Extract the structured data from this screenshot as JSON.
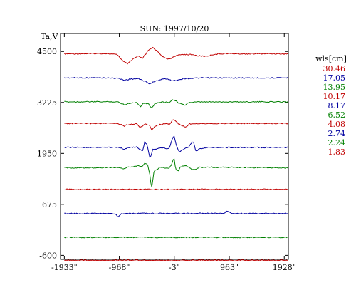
{
  "chart_data": {
    "type": "line",
    "title": "SUN: 1997/10/20",
    "ylabel": "Ta,V",
    "xlabel": "",
    "xlim": [
      -2000,
      2000
    ],
    "ylim": [
      -700,
      4950
    ],
    "xticks": [
      -1933,
      -968,
      -3,
      963,
      1928
    ],
    "xtick_labels": [
      "-1933\"",
      "-968\"",
      "-3\"",
      "963\"",
      "1928\""
    ],
    "yticks": [
      -600,
      675,
      1950,
      3225,
      4500
    ],
    "ytick_labels": [
      "-600",
      "675",
      "1950",
      "3225",
      "4500"
    ],
    "legend_title": "wls[cm]",
    "legend_position": "right",
    "grid": false,
    "colors": {
      "red": "#c00000",
      "blue": "#0000a0",
      "green": "#008000",
      "axis": "#000000"
    },
    "series": [
      {
        "name": "30.46",
        "color": "#c00000",
        "baseline": 4450,
        "points": [
          [
            -1933,
            4440
          ],
          [
            -1500,
            4445
          ],
          [
            -1200,
            4450
          ],
          [
            -1000,
            4420
          ],
          [
            -900,
            4250
          ],
          [
            -820,
            4190
          ],
          [
            -720,
            4320
          ],
          [
            -640,
            4380
          ],
          [
            -560,
            4330
          ],
          [
            -460,
            4520
          ],
          [
            -380,
            4600
          ],
          [
            -300,
            4510
          ],
          [
            -200,
            4360
          ],
          [
            -100,
            4300
          ],
          [
            -3,
            4380
          ],
          [
            150,
            4430
          ],
          [
            300,
            4420
          ],
          [
            420,
            4390
          ],
          [
            560,
            4380
          ],
          [
            700,
            4430
          ],
          [
            900,
            4450
          ],
          [
            1200,
            4440
          ],
          [
            1600,
            4445
          ],
          [
            1928,
            4440
          ]
        ]
      },
      {
        "name": "17.05",
        "color": "#0000a0",
        "baseline": 3840,
        "points": [
          [
            -1933,
            3840
          ],
          [
            -1300,
            3842
          ],
          [
            -1000,
            3835
          ],
          [
            -880,
            3780
          ],
          [
            -780,
            3810
          ],
          [
            -640,
            3820
          ],
          [
            -520,
            3760
          ],
          [
            -440,
            3690
          ],
          [
            -360,
            3740
          ],
          [
            -200,
            3820
          ],
          [
            -100,
            3800
          ],
          [
            -40,
            3770
          ],
          [
            40,
            3780
          ],
          [
            150,
            3820
          ],
          [
            400,
            3835
          ],
          [
            700,
            3840
          ],
          [
            1100,
            3838
          ],
          [
            1928,
            3840
          ]
        ]
      },
      {
        "name": "13.95",
        "color": "#008000",
        "baseline": 3240,
        "points": [
          [
            -1933,
            3240
          ],
          [
            -1300,
            3243
          ],
          [
            -1000,
            3240
          ],
          [
            -880,
            3170
          ],
          [
            -800,
            3200
          ],
          [
            -660,
            3230
          ],
          [
            -600,
            3120
          ],
          [
            -540,
            3210
          ],
          [
            -460,
            3190
          ],
          [
            -400,
            3090
          ],
          [
            -340,
            3200
          ],
          [
            -200,
            3240
          ],
          [
            -100,
            3220
          ],
          [
            -40,
            3300
          ],
          [
            10,
            3280
          ],
          [
            60,
            3220
          ],
          [
            100,
            3200
          ],
          [
            180,
            3150
          ],
          [
            240,
            3220
          ],
          [
            400,
            3235
          ],
          [
            800,
            3240
          ],
          [
            1928,
            3240
          ]
        ]
      },
      {
        "name": "10.17",
        "color": "#c00000",
        "baseline": 2700,
        "points": [
          [
            -1933,
            2700
          ],
          [
            -1300,
            2702
          ],
          [
            -1000,
            2700
          ],
          [
            -880,
            2640
          ],
          [
            -800,
            2680
          ],
          [
            -660,
            2690
          ],
          [
            -600,
            2600
          ],
          [
            -520,
            2680
          ],
          [
            -440,
            2660
          ],
          [
            -400,
            2540
          ],
          [
            -320,
            2650
          ],
          [
            -200,
            2690
          ],
          [
            -80,
            2680
          ],
          [
            -30,
            2800
          ],
          [
            20,
            2760
          ],
          [
            80,
            2680
          ],
          [
            200,
            2600
          ],
          [
            260,
            2690
          ],
          [
            400,
            2700
          ],
          [
            800,
            2700
          ],
          [
            1928,
            2700
          ]
        ]
      },
      {
        "name": "8.17",
        "color": "#0000a0",
        "baseline": 2100,
        "points": [
          [
            -1933,
            2100
          ],
          [
            -1300,
            2103
          ],
          [
            -1000,
            2100
          ],
          [
            -880,
            2060
          ],
          [
            -800,
            2100
          ],
          [
            -660,
            2110
          ],
          [
            -560,
            2000
          ],
          [
            -520,
            2240
          ],
          [
            -480,
            2160
          ],
          [
            -430,
            1820
          ],
          [
            -380,
            2050
          ],
          [
            -200,
            2090
          ],
          [
            -100,
            2060
          ],
          [
            -50,
            2250
          ],
          [
            -10,
            2410
          ],
          [
            30,
            2180
          ],
          [
            80,
            1990
          ],
          [
            160,
            2050
          ],
          [
            250,
            2120
          ],
          [
            330,
            2250
          ],
          [
            380,
            1990
          ],
          [
            440,
            2070
          ],
          [
            600,
            2100
          ],
          [
            1000,
            2100
          ],
          [
            1928,
            2100
          ]
        ]
      },
      {
        "name": "6.52",
        "color": "#008000",
        "baseline": 1590,
        "points": [
          [
            -1933,
            1590
          ],
          [
            -1300,
            1595
          ],
          [
            -1000,
            1600
          ],
          [
            -880,
            1560
          ],
          [
            -800,
            1610
          ],
          [
            -660,
            1640
          ],
          [
            -570,
            1620
          ],
          [
            -520,
            1720
          ],
          [
            -470,
            1660
          ],
          [
            -430,
            1400
          ],
          [
            -400,
            1060
          ],
          [
            -360,
            1500
          ],
          [
            -250,
            1600
          ],
          [
            -100,
            1580
          ],
          [
            -50,
            1660
          ],
          [
            -10,
            1860
          ],
          [
            20,
            1560
          ],
          [
            60,
            1500
          ],
          [
            110,
            1620
          ],
          [
            200,
            1640
          ],
          [
            300,
            1560
          ],
          [
            360,
            1540
          ],
          [
            440,
            1600
          ],
          [
            700,
            1605
          ],
          [
            1100,
            1600
          ],
          [
            1928,
            1590
          ]
        ]
      },
      {
        "name": "4.08",
        "color": "#c00000",
        "baseline": 1050,
        "points": [
          [
            -1933,
            1050
          ],
          [
            -1000,
            1052
          ],
          [
            -500,
            1050
          ],
          [
            0,
            1048
          ],
          [
            600,
            1052
          ],
          [
            1928,
            1050
          ]
        ]
      },
      {
        "name": "2.74",
        "color": "#0000a0",
        "baseline": 445,
        "points": [
          [
            -1933,
            445
          ],
          [
            -1200,
            447
          ],
          [
            -1020,
            430
          ],
          [
            -990,
            340
          ],
          [
            -960,
            420
          ],
          [
            -900,
            445
          ],
          [
            -500,
            448
          ],
          [
            0,
            447
          ],
          [
            500,
            448
          ],
          [
            880,
            455
          ],
          [
            920,
            520
          ],
          [
            950,
            490
          ],
          [
            990,
            448
          ],
          [
            1300,
            447
          ],
          [
            1928,
            445
          ]
        ]
      },
      {
        "name": "2.24",
        "color": "#008000",
        "baseline": -150,
        "points": [
          [
            -1933,
            -150
          ],
          [
            -1000,
            -148
          ],
          [
            -500,
            -150
          ],
          [
            0,
            -152
          ],
          [
            500,
            -148
          ],
          [
            1000,
            -150
          ],
          [
            1928,
            -150
          ]
        ]
      },
      {
        "name": "1.83",
        "color": "#c00000",
        "baseline": -725,
        "points": [
          [
            -1933,
            -725
          ],
          [
            -1000,
            -722
          ],
          [
            -500,
            -725
          ],
          [
            0,
            -728
          ],
          [
            500,
            -722
          ],
          [
            1000,
            -725
          ],
          [
            1928,
            -725
          ]
        ]
      }
    ]
  }
}
